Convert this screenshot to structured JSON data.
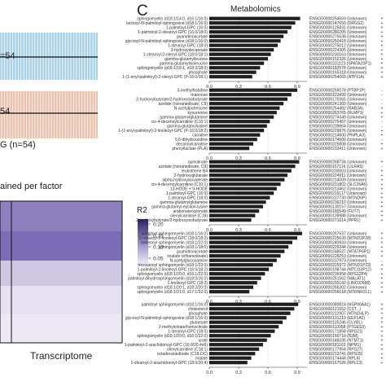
{
  "panel_letter": "C",
  "metabolomics_title": "Metabolomics",
  "left": {
    "strip1_label": "=54",
    "strip2_label": "54",
    "strip3_label": "G (n=54)",
    "heatmap_title": "ained per factor",
    "legend_title": "R2",
    "legend_ticks": [
      "0.20",
      "0.15",
      "0.10",
      "0.05"
    ],
    "xlabel": "Transcriptome",
    "colors": {
      "blue": "#a9d2e8",
      "salmon": "#eac4b0",
      "heat_low": "#f3eef8",
      "heat_high": "#2a1e63"
    }
  },
  "chart_data": [
    {
      "type": "bar",
      "name": "Factor 1 metabolites",
      "xlim": [
        0,
        1
      ],
      "x_ticks": [
        "0.0",
        "0.3",
        "0.6",
        "0.9"
      ],
      "categories": [
        "sphingomyelin (d18:1/14:0, d16:1/16:0)",
        "lactosyl-N-palmitoyl-sphingosine (d18:1/16:0)",
        "1-palmitoyl-GPC (16:0)",
        "1-palmitoyl-2-stearoyl-GPC (16:0/18:0)",
        "guanidinoacetate",
        "glycosyl-N-palmitoyl-sphingosine (d18:1/16:0)",
        "1-stearoyl-GPC (18:0)",
        "3-hydroxydecanoate",
        "1-stearoyl-2-oleoyl-GPC (18:0/18:1)",
        "gamma-glutamylleucine",
        "gamma-glutamylisoleucine",
        "sphingomyelin (d18:1/18:1, d18:2/18:0)",
        "phosphate",
        "1-(1-enyl-palmitoyl)-2-oleoyl-GPC (P-16:0/18:1)"
      ],
      "values": [
        0.93,
        0.88,
        0.84,
        0.8,
        0.76,
        0.73,
        0.7,
        0.66,
        0.63,
        0.6,
        0.56,
        0.52,
        0.48,
        0.44
      ],
      "genes": [
        "ENSG00000254669 (Unknown)",
        "ENSG00000147650 (DRGS2)",
        "ENSG00000125831 (Unknown)",
        "ENSG00000280205 (Unknown)",
        "ENSG00000276538 (Unknown)",
        "ENSG00000250418 (Unknown)",
        "ENSG00000275012 (Unknown)",
        "ENSG00000224305 (Unknown)",
        "ENSG00000230163 (Unknown)",
        "ENSG00000152326 (Unknown)",
        "ENSG00000231123 (SPATA20P1)",
        "ENSG00000182578 (Unknown)",
        "ENSG00000165318 (Unknown)",
        "ENSG00000254069 (ATP11A)"
      ],
      "signs": [
        "+",
        "+",
        "+",
        "+",
        "+",
        "+",
        "+",
        "+",
        "+",
        "+",
        "+",
        "+",
        "+",
        "+"
      ]
    },
    {
      "type": "bar",
      "name": "Factor 2 metabolites",
      "xlim": [
        0,
        1
      ],
      "x_ticks": [
        "0.0",
        "0.3",
        "0.6",
        "0.9"
      ],
      "categories": [
        "3-methylhistidine",
        "mannose",
        "2-hydroxybutyrate/2-hydroxyisobutyrate",
        "azelate (nonanedioate; C9)",
        "N-acetylputrescine",
        "kynurenine",
        "gamma-glutamylglutamine",
        "cis-4-decenoylcarnitine (C10:1)",
        "gamma-glutamylvaline",
        "1-(1-enyl-palmitoyl)-2-linoleoyl-GPC (P-16:0/18:2)",
        "carnitine",
        "5,6-dihydrouridine",
        "decanoylcarnitine",
        "phenyllactate (PLA)"
      ],
      "values": [
        0.9,
        0.84,
        0.8,
        0.76,
        0.72,
        0.69,
        0.66,
        0.62,
        0.59,
        0.56,
        0.52,
        0.49,
        0.45,
        0.41
      ],
      "genes": [
        "ENSG00000259078 (PTBP1P)",
        "ENSG00000223492 (Unknown)",
        "ENSG00000170365 (Unknown)",
        "ENSG00000241360 (Unknown)",
        "ENSG00000254482 (RAB3A)",
        "ENSG00000263765 (RLMP1)",
        "ENSG00000274349 (Unknown)",
        "ENSG00000276457 (Unknown)",
        "ENSG00000239864 (Unknown)",
        "ENSG00000229876 (Unknown)",
        "ENSG00000214600 (PNPLA3)",
        "ENSG00000174600 (Unknown)",
        "ENSG00000225808 (Unknown)",
        "ENSG00000233411 (Unknown)"
      ],
      "signs": [
        "-",
        "-",
        "-",
        "-",
        "+",
        "+",
        "+",
        "-",
        "-",
        "+",
        "+",
        "-",
        "+",
        "+"
      ]
    },
    {
      "type": "bar",
      "name": "Factor 3 metabolites",
      "xlim": [
        0,
        1
      ],
      "x_ticks": [
        "0.0",
        "0.3",
        "0.6",
        "0.9"
      ],
      "categories": [
        "quinolinate",
        "azelate (nonanedioate; C9)",
        "leukotriene B4",
        "2-hydroxyglutarate",
        "alpha-hydroxyisovalerate",
        "cis-4-decenoylcarnitine (C10:1)",
        "13-HODE + 9-HODE",
        "1-palmitoyl-GPC (16:0)",
        "1-stearoyl-GPC (18:0)",
        "gamma-glutamylglutamine",
        "gamma-glutamyl-epsilon-lysine",
        "arabonate/xylonate",
        "oleoylcarnitine (C18)",
        "2-hydroxybutyrate/2-hydroxyisobutyrate"
      ],
      "values": [
        0.92,
        0.88,
        0.84,
        0.8,
        0.77,
        0.73,
        0.69,
        0.66,
        0.62,
        0.58,
        0.55,
        0.51,
        0.47,
        0.43
      ],
      "genes": [
        "ENSG00000268734 (Unknown)",
        "ENSG00000167116 (LILRA5)",
        "ENSG00000230003 (Unknown)",
        "ENSG00000224911 (Unknown)",
        "ENSG00000214009 (Unknown)",
        "ENSG00000231802 (SLC26A6)",
        "ENSG00000213462 (Unknown)",
        "ENSG00000219117 (Unknown)",
        "ENSG00000227730 (MTND6P)",
        "ENSG00000236210 (Unknown)",
        "ENSG00000130157 (Unknown)",
        "ENSG00000180549 (FUT7)",
        "ENSG00000139988 (Unknown)",
        "ENSG00000271614 (PPR1)"
      ],
      "signs": [
        "+",
        "-",
        "+",
        "+",
        "+",
        "+",
        "+",
        "+",
        "+",
        "+",
        "+",
        "+",
        "+",
        "+"
      ]
    },
    {
      "type": "bar",
      "name": "Factor 4 metabolites",
      "xlim": [
        0,
        1
      ],
      "x_ticks": [
        "0.0",
        "0.3",
        "0.6",
        "0.9"
      ],
      "categories": [
        "palmitoyl sphingomyelin (d18:1/16:0)",
        "1-stearoyl-2-linoleoyl-GPC (18:0/18:2)",
        "behenoyl sphingomyelin (d18:1/22:0)",
        "sphingomyelin (d18:1/18:0)",
        "guanidinoacetate",
        "oxalate (ethanedioate)",
        "N-acetylglucosamine",
        "tricosanoyl sphingomyelin (d18:1/23:0)",
        "1-palmitoyl-2-linoleoyl-GPC (16:0/18:2)",
        "sphingomyelin (d18:1/20:0, d16:1/22:0)",
        "palmitoyl dihydrosphingomyelin (d18:0/16:0)",
        "1-linoleoyl-GPC (18:2)",
        "sphingomyelin (d18:1/20:1, d18:2/20:0)",
        "sphingomyelin (d18:1/21:0, d17:1/22:0)"
      ],
      "values": [
        0.95,
        0.9,
        0.85,
        0.81,
        0.77,
        0.73,
        0.69,
        0.65,
        0.61,
        0.57,
        0.53,
        0.49,
        0.45,
        0.41
      ],
      "genes": [
        "ENSG00000267637 (Unknown)",
        "ENSG00000225630 (MTND2P28)",
        "ENSG00000240933 (Unknown)",
        "ENSG00000229344 (Unknown)",
        "ENSG00000248527 (MTATP6P1)",
        "ENSG00000228253 (Unknown)",
        "ENSG00000237973 (Unknown)",
        "ENSG00000225972 (MTND1P23)",
        "ENSG00000198744 (MTCO3P12)",
        "ENSG00000236958 (RPS12P4)",
        "ENSG00000251562 (MALAT1)",
        "ENSG00000235142 (LINC02688)",
        "ENSG00000266302 (Unknown)",
        "ENSG00000256618 (MTRNR2L1)"
      ],
      "signs": [
        "+",
        "+",
        "+",
        "+",
        "+",
        "+",
        "-",
        "+",
        "+",
        "+",
        "+",
        "+",
        "+",
        "+"
      ]
    },
    {
      "type": "bar",
      "name": "Factor 5 metabolites",
      "xlim": [
        0,
        1
      ],
      "x_ticks": [
        "0.0",
        "0.3",
        "0.6",
        "0.9"
      ],
      "categories": [
        "palmitoyl sphingomyelin (d18:1/16:0)",
        "cholesterol",
        "phosphate",
        "glycosyl-N-palmitoyl-sphingosine (d18:1/16:0)",
        "glutamate",
        "2-methylcitrate/homocitrate",
        "1-stearoyl-GPC (18:0)",
        "sphingomyelin (d18:1/20:0, d16:1/22:0)",
        "urate",
        "1-palmitoyl-2-arachidonoyl-GPC (16:0/20:4n6)",
        "oleoylcarnitine (C18:1)",
        "octadecanedioate (C18-DC)",
        "malate",
        "1-stearoyl-2-arachidonoyl-GPC (18:0/20:4)"
      ],
      "values": [
        0.91,
        0.87,
        0.83,
        0.79,
        0.75,
        0.71,
        0.67,
        0.63,
        0.59,
        0.55,
        0.51,
        0.47,
        0.43,
        0.39
      ],
      "genes": [
        "ENSG00000080824 (HSP90AA1)",
        "ENSG00000121552 (CST...)",
        "ENSG00000212907 (MTND4LP)",
        "ENSG00000101210 (EEF1A2)",
        "ENSG00000125246 (CLYBL)",
        "ENSG00000110958 (PTGES3)",
        "ENSG00000171858 (RPS21)",
        "ENSG00000166710 (B2M)",
        "ENSG00000148335 (NTMT1)",
        "ENSG00000181163 (NPM1)",
        "ENSG00000177954 (RPS27)",
        "ENSG00000213741 (RPS29)",
        "ENSG00000174444 (RPL4)",
        "ENSG00000167526 (RPL13)"
      ],
      "signs": [
        "+",
        "+",
        "+",
        "+",
        "+",
        "+",
        "+",
        "+",
        "+",
        "+",
        "+",
        "+",
        "+",
        "+"
      ]
    }
  ]
}
